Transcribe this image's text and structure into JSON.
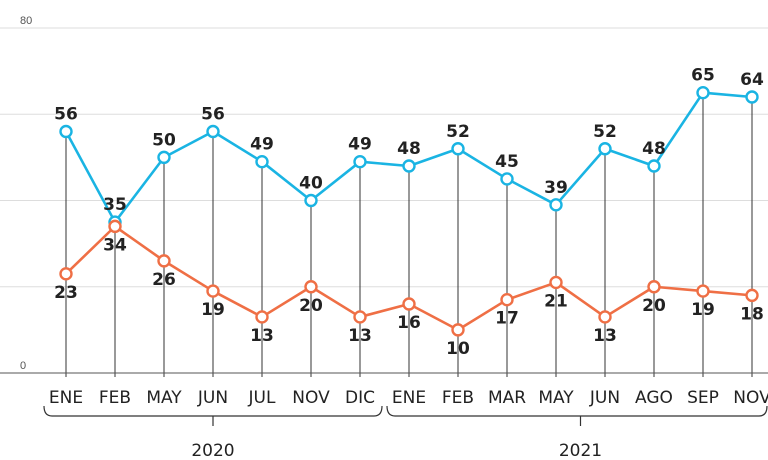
{
  "chart_data": {
    "type": "line",
    "categories": [
      "ENE",
      "FEB",
      "MAY",
      "JUN",
      "JUL",
      "NOV",
      "DIC",
      "ENE",
      "FEB",
      "MAR",
      "MAY",
      "JUN",
      "AGO",
      "SEP",
      "NOV"
    ],
    "groups": [
      {
        "label": "2020",
        "start": 0,
        "end": 6
      },
      {
        "label": "2021",
        "start": 7,
        "end": 14
      }
    ],
    "series": [
      {
        "color": "#1ab4e3",
        "values": [
          56,
          35,
          50,
          56,
          49,
          40,
          49,
          48,
          52,
          45,
          39,
          52,
          48,
          65,
          64
        ]
      },
      {
        "color": "#ef6f45",
        "values": [
          23,
          34,
          26,
          19,
          13,
          20,
          13,
          16,
          10,
          17,
          21,
          13,
          20,
          19,
          18
        ]
      }
    ],
    "ylim": [
      0,
      80
    ],
    "yticks": [
      0,
      80
    ],
    "grid": true
  }
}
